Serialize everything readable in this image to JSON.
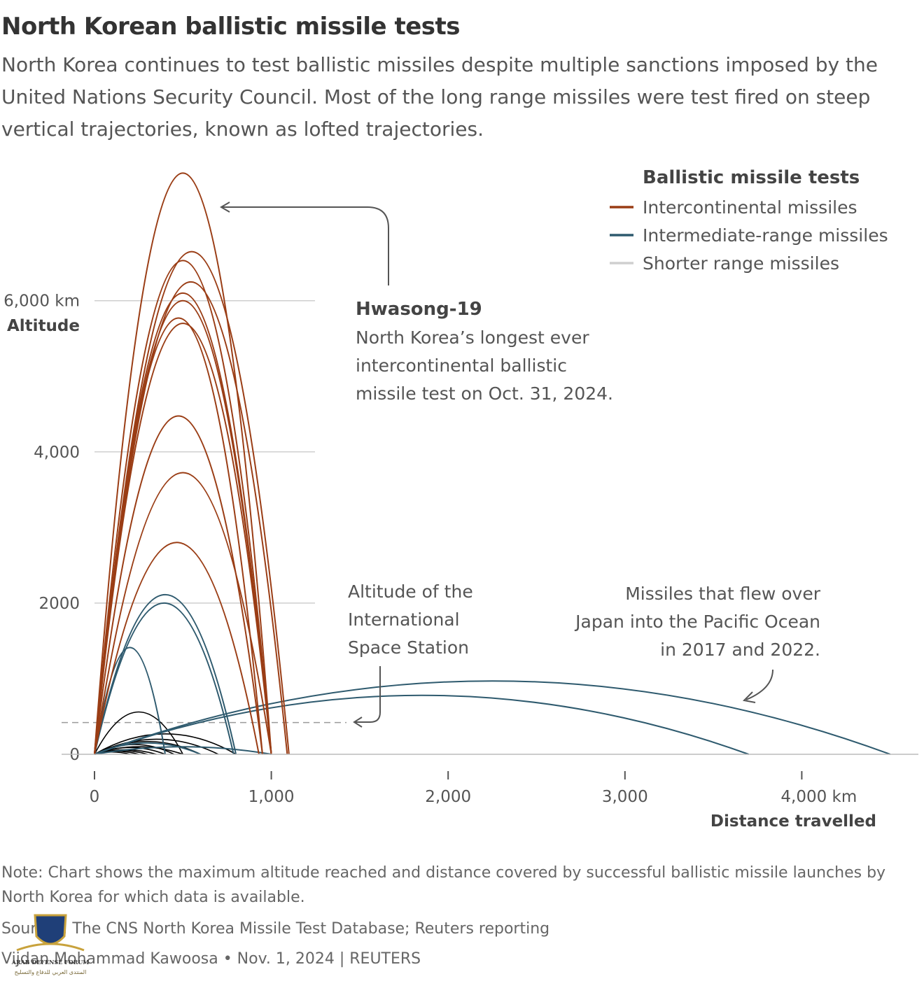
{
  "title": "North Korean ballistic missile tests",
  "subtitle": "North Korea continues to test ballistic missiles despite multiple sanctions imposed by the United Nations Security Council. Most of the long range missiles were test fired on steep vertical trajectories, known as lofted trajectories.",
  "colors": {
    "intercontinental": "#9a3d15",
    "intermediate": "#2e5a6e",
    "shorter": "#000000",
    "legend_shorter": "#cfcfcf",
    "grid": "#cfcfcf",
    "iss_line": "#9a9a9a"
  },
  "chart_data": {
    "type": "line",
    "xlabel": "Distance travelled",
    "ylabel": "Altitude",
    "x_unit": "km",
    "y_unit": "km",
    "xlim": [
      0,
      4650
    ],
    "ylim": [
      0,
      7700
    ],
    "x_ticks": [
      {
        "value": 0,
        "label": "0"
      },
      {
        "value": 1000,
        "label": "1,000"
      },
      {
        "value": 2000,
        "label": "2,000"
      },
      {
        "value": 3000,
        "label": "3,000"
      },
      {
        "value": 4000,
        "label": "4,000 km"
      }
    ],
    "y_ticks": [
      {
        "value": 0,
        "label": "0"
      },
      {
        "value": 2000,
        "label": "2000"
      },
      {
        "value": 4000,
        "label": "4,000"
      },
      {
        "value": 6000,
        "label": "6,000 km"
      }
    ],
    "legend": {
      "title": "Ballistic missile tests",
      "position": "top-right",
      "entries": [
        {
          "key": "intercontinental",
          "label": "Intercontinental missiles"
        },
        {
          "key": "intermediate",
          "label": "Intermediate-range missiles"
        },
        {
          "key": "shorter",
          "label": "Shorter range missiles"
        }
      ]
    },
    "iss_altitude": 420,
    "series": [
      {
        "category": "intercontinental",
        "distance": 1000,
        "apogee": 7687
      },
      {
        "category": "intercontinental",
        "distance": 1100,
        "apogee": 6648
      },
      {
        "category": "intercontinental",
        "distance": 1000,
        "apogee": 6530
      },
      {
        "category": "intercontinental",
        "distance": 1090,
        "apogee": 6248
      },
      {
        "category": "intercontinental",
        "distance": 1000,
        "apogee": 6100
      },
      {
        "category": "intercontinental",
        "distance": 1000,
        "apogee": 6000
      },
      {
        "category": "intercontinental",
        "distance": 950,
        "apogee": 5770
      },
      {
        "category": "intercontinental",
        "distance": 1000,
        "apogee": 5700
      },
      {
        "category": "intercontinental",
        "distance": 950,
        "apogee": 4475
      },
      {
        "category": "intercontinental",
        "distance": 1000,
        "apogee": 3725
      },
      {
        "category": "intercontinental",
        "distance": 930,
        "apogee": 2802
      },
      {
        "category": "intermediate",
        "distance": 800,
        "apogee": 2111
      },
      {
        "category": "intermediate",
        "distance": 787,
        "apogee": 2000
      },
      {
        "category": "intermediate",
        "distance": 400,
        "apogee": 1413
      },
      {
        "category": "intermediate",
        "distance": 3700,
        "apogee": 780
      },
      {
        "category": "intermediate",
        "distance": 4500,
        "apogee": 970
      },
      {
        "category": "intermediate",
        "distance": 600,
        "apogee": 150
      },
      {
        "category": "intermediate",
        "distance": 1000,
        "apogee": 100
      },
      {
        "category": "shorter",
        "distance": 500,
        "apogee": 560
      },
      {
        "category": "shorter",
        "distance": 800,
        "apogee": 270
      },
      {
        "category": "shorter",
        "distance": 700,
        "apogee": 200
      },
      {
        "category": "shorter",
        "distance": 600,
        "apogee": 170
      },
      {
        "category": "shorter",
        "distance": 450,
        "apogee": 130
      },
      {
        "category": "shorter",
        "distance": 500,
        "apogee": 100
      },
      {
        "category": "shorter",
        "distance": 400,
        "apogee": 90
      },
      {
        "category": "shorter",
        "distance": 350,
        "apogee": 60
      },
      {
        "category": "shorter",
        "distance": 300,
        "apogee": 50
      },
      {
        "category": "shorter",
        "distance": 250,
        "apogee": 40
      },
      {
        "category": "shorter",
        "distance": 200,
        "apogee": 30
      }
    ],
    "annotations": {
      "hwasong": {
        "title": "Hwasong-19",
        "lines": [
          "North Korea’s longest ever",
          "intercontinental ballistic",
          "missile test on Oct. 31, 2024."
        ]
      },
      "iss": {
        "lines": [
          "Altitude of the",
          "International",
          "Space Station"
        ]
      },
      "japan": {
        "lines": [
          "Missiles that flew over",
          "Japan into the Pacific Ocean",
          "in 2017 and 2022."
        ]
      }
    }
  },
  "footer": {
    "note": "Note: Chart shows the maximum altitude reached and distance covered by successful ballistic missile launches by North Korea for which data is available.",
    "sources": "Sources: The CNS North Korea Missile Test Database; Reuters reporting",
    "credit": "Vijdan Mohammad Kawoosa • Nov. 1, 2024 | REUTERS"
  },
  "watermark": {
    "lines": [
      "ARAB DEFENSE FORUM",
      "المنتدى العربي للدفاع والتسليح"
    ]
  }
}
